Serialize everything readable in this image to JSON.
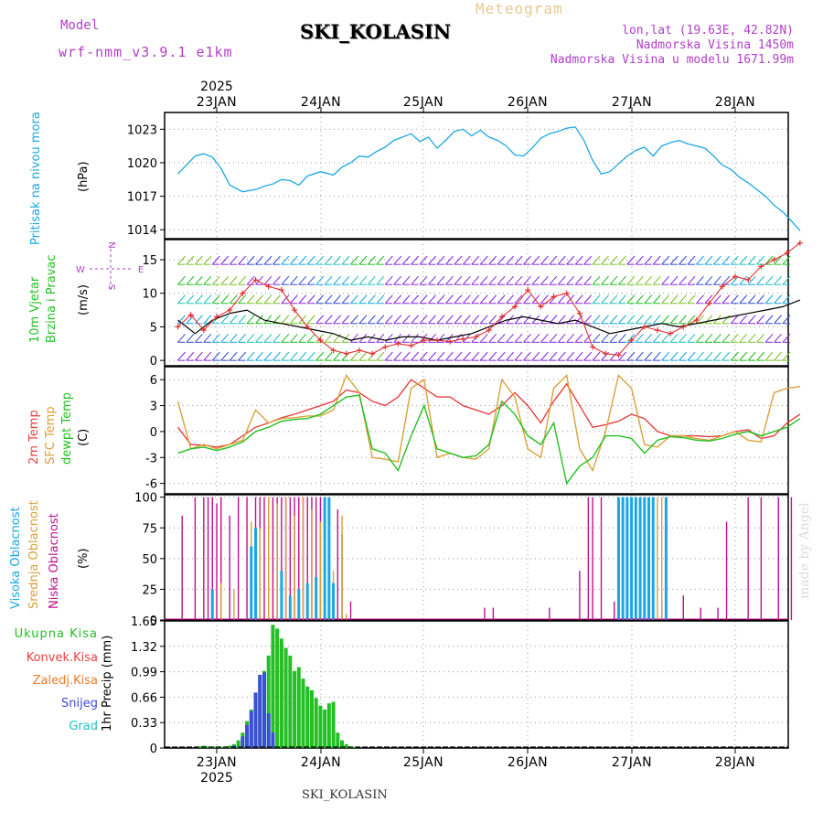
{
  "header": {
    "model_label": "Model",
    "model_name": "wrf-nmm_v3.9.1 e1km",
    "title": "SKI_KOLASIN",
    "subtitle": "Meteogram",
    "lonlat": "lon,lat (19.63E, 42.82N)",
    "altitude": "Nadmorska Visina 1450m",
    "model_altitude": "Nadmorska Visina u modelu 1671.99m",
    "footer_title": "SKI_KOLASIN",
    "credit": "made by Angel",
    "year": "2025"
  },
  "colors": {
    "pressure": "#1aa7e6",
    "wind_speed": "#e23030",
    "wind_black": "#000000",
    "t2m": "#e84040",
    "tsfc": "#d9a23a",
    "dewpt": "#22c022",
    "cloud_high": "#1aa7e6",
    "cloud_mid": "#d9a23a",
    "cloud_low": "#c0108c",
    "precip_total": "#22c022",
    "precip_conv": "#e84040",
    "precip_frz": "#f07a2a",
    "precip_snow": "#3b4fd8",
    "precip_hail": "#22c0c0",
    "label_purple": "#b040c8"
  },
  "chart_data": [
    {
      "id": "pressure",
      "type": "line",
      "ylabel_name": "Pritisak na nivou mora",
      "ylabel_unit": "(hPa)",
      "ylim": [
        1013.2,
        1024.5
      ],
      "yticks": [
        1014,
        1017,
        1020,
        1023
      ],
      "xticks": [
        "23JAN",
        "24JAN",
        "25JAN",
        "26JAN",
        "27JAN",
        "28JAN"
      ],
      "xlim": [
        0,
        144
      ],
      "grid": true,
      "series": [
        {
          "color": "pressure",
          "x": [
            0,
            2,
            4,
            6,
            8,
            10,
            12,
            15,
            18,
            20,
            22,
            24,
            26,
            28,
            30,
            33,
            36,
            38,
            40,
            42,
            44,
            46,
            48,
            50,
            52,
            54,
            56,
            58,
            60,
            62,
            64,
            66,
            68,
            70,
            72,
            74,
            76,
            78,
            80,
            82,
            84,
            86,
            88,
            90,
            92,
            94,
            96,
            98,
            100,
            102,
            104,
            106,
            108,
            110,
            112,
            114,
            116,
            118,
            120,
            122,
            124,
            126,
            128,
            130,
            132,
            134,
            136,
            138,
            140,
            142,
            144
          ],
          "y": [
            1019.0,
            1019.8,
            1020.6,
            1020.8,
            1020.5,
            1019.5,
            1018.0,
            1017.4,
            1017.6,
            1017.9,
            1018.1,
            1018.5,
            1018.4,
            1018.0,
            1018.8,
            1019.2,
            1018.9,
            1019.6,
            1020.0,
            1020.6,
            1020.5,
            1021.0,
            1021.4,
            1022.0,
            1022.3,
            1022.6,
            1021.9,
            1022.3,
            1021.3,
            1022.0,
            1022.8,
            1023.0,
            1022.4,
            1022.9,
            1022.3,
            1022.0,
            1021.5,
            1020.7,
            1020.6,
            1021.3,
            1022.2,
            1022.6,
            1022.8,
            1023.1,
            1023.2,
            1022.0,
            1020.2,
            1019.0,
            1019.2,
            1019.9,
            1020.6,
            1021.1,
            1021.4,
            1020.6,
            1021.5,
            1021.8,
            1022.0,
            1021.7,
            1021.5,
            1021.3,
            1020.6,
            1019.8,
            1019.4,
            1018.7,
            1018.2,
            1017.6,
            1017.0,
            1016.2,
            1015.6,
            1014.8,
            1013.9
          ]
        }
      ]
    },
    {
      "id": "wind",
      "type": "line",
      "ylabel_name": "10m Vjetar Brzina i Pravac",
      "ylabel_unit": "(m/s)",
      "compass": {
        "n": "N",
        "s": "S",
        "w": "W",
        "e": "E"
      },
      "ylim": [
        -0.8,
        18
      ],
      "yticks": [
        0,
        5,
        10,
        15
      ],
      "xlim": [
        0,
        144
      ],
      "grid": true,
      "series": [
        {
          "color": "wind_speed",
          "marker": "+",
          "x": [
            0,
            3,
            6,
            9,
            12,
            15,
            18,
            21,
            24,
            27,
            30,
            33,
            36,
            39,
            42,
            45,
            48,
            51,
            54,
            57,
            60,
            63,
            66,
            69,
            72,
            75,
            78,
            81,
            84,
            87,
            90,
            93,
            96,
            99,
            102,
            105,
            108,
            111,
            114,
            117,
            120,
            123,
            126,
            129,
            132,
            135,
            138,
            141,
            144
          ],
          "y": [
            5.0,
            6.8,
            4.5,
            6.5,
            7.5,
            10.0,
            12.0,
            11.0,
            10.5,
            7.5,
            5.0,
            3.0,
            1.5,
            1.0,
            1.5,
            1.0,
            2.0,
            2.5,
            2.2,
            3.0,
            3.0,
            2.8,
            3.2,
            3.5,
            4.5,
            6.5,
            8.0,
            10.5,
            8.0,
            9.5,
            10.0,
            7.0,
            2.0,
            1.0,
            0.8,
            3.0,
            5.0,
            4.5,
            4.0,
            5.0,
            6.0,
            8.5,
            11.0,
            12.5,
            12.0,
            14.0,
            15.0,
            16.0,
            17.5
          ]
        },
        {
          "color": "wind_black",
          "x": [
            0,
            4,
            8,
            12,
            16,
            20,
            24,
            28,
            32,
            36,
            40,
            44,
            48,
            52,
            56,
            60,
            64,
            68,
            72,
            76,
            80,
            84,
            88,
            92,
            96,
            100,
            104,
            108,
            112,
            116,
            120,
            124,
            128,
            132,
            136,
            140,
            144
          ],
          "y": [
            6.0,
            4.0,
            6.0,
            7.0,
            7.5,
            6.0,
            5.5,
            5.0,
            4.5,
            4.0,
            3.0,
            3.5,
            3.0,
            3.5,
            3.5,
            3.0,
            3.5,
            4.0,
            5.0,
            6.0,
            6.5,
            6.0,
            5.5,
            6.0,
            5.0,
            4.0,
            4.5,
            5.0,
            5.5,
            5.0,
            5.5,
            6.0,
            6.5,
            7.0,
            7.5,
            8.0,
            9.0
          ]
        }
      ],
      "barb_rows": [
        0,
        2.7,
        5.5,
        8.5,
        11.3,
        14.3
      ]
    },
    {
      "id": "temperature",
      "type": "line",
      "ylabel_name": [
        "2m Temp",
        "SFC Temp",
        "dewpt Temp"
      ],
      "ylabel_unit": "(C)",
      "ylim": [
        -7.2,
        7.5
      ],
      "yticks": [
        -6,
        -3,
        0,
        3,
        6
      ],
      "xlim": [
        0,
        144
      ],
      "grid": true,
      "series": [
        {
          "name": "2m Temp",
          "color": "t2m",
          "x": [
            0,
            3,
            6,
            9,
            12,
            15,
            18,
            21,
            24,
            27,
            30,
            33,
            36,
            39,
            42,
            45,
            48,
            51,
            54,
            57,
            60,
            63,
            66,
            69,
            72,
            75,
            78,
            81,
            84,
            87,
            90,
            93,
            96,
            99,
            102,
            105,
            108,
            111,
            114,
            117,
            120,
            123,
            126,
            129,
            132,
            135,
            138,
            141,
            144
          ],
          "y": [
            0.5,
            -1.5,
            -1.6,
            -1.8,
            -1.5,
            -0.5,
            0.5,
            1.0,
            1.6,
            2.0,
            2.5,
            3.0,
            3.5,
            4.8,
            4.5,
            3.5,
            3.0,
            4.0,
            6.0,
            5.0,
            4.0,
            4.0,
            3.0,
            2.5,
            2.0,
            3.0,
            4.5,
            3.0,
            1.0,
            3.5,
            5.5,
            3.0,
            0.5,
            0.8,
            1.2,
            2.0,
            1.5,
            0.0,
            -0.5,
            -0.5,
            -0.5,
            -0.6,
            -0.5,
            0.0,
            0.2,
            -0.8,
            -0.5,
            1.0,
            2.0
          ]
        },
        {
          "name": "SFC Temp",
          "color": "tsfc",
          "x": [
            0,
            3,
            6,
            9,
            12,
            15,
            18,
            21,
            24,
            27,
            30,
            33,
            36,
            39,
            42,
            45,
            48,
            51,
            54,
            57,
            60,
            63,
            66,
            69,
            72,
            75,
            78,
            81,
            84,
            87,
            90,
            93,
            96,
            99,
            102,
            105,
            108,
            111,
            114,
            117,
            120,
            123,
            126,
            129,
            132,
            135,
            138,
            141,
            144
          ],
          "y": [
            3.5,
            -2.0,
            -1.5,
            -2.0,
            -1.5,
            -1.0,
            2.5,
            1.0,
            1.5,
            1.6,
            1.8,
            1.8,
            2.5,
            6.5,
            4.5,
            -3.0,
            -3.2,
            -3.5,
            5.0,
            6.0,
            -3.0,
            -2.5,
            -3.0,
            -3.2,
            -2.0,
            6.0,
            4.0,
            -2.0,
            -3.0,
            5.0,
            6.5,
            -2.0,
            -4.5,
            0.0,
            6.5,
            5.0,
            -1.5,
            -1.8,
            -0.5,
            -0.5,
            -0.8,
            -1.0,
            -0.5,
            0.0,
            -1.0,
            -1.2,
            4.5,
            5.0,
            5.2
          ]
        },
        {
          "name": "dewpt Temp",
          "color": "dewpt",
          "x": [
            0,
            3,
            6,
            9,
            12,
            15,
            18,
            21,
            24,
            27,
            30,
            33,
            36,
            39,
            42,
            45,
            48,
            51,
            54,
            57,
            60,
            63,
            66,
            69,
            72,
            75,
            78,
            81,
            84,
            87,
            90,
            93,
            96,
            99,
            102,
            105,
            108,
            111,
            114,
            117,
            120,
            123,
            126,
            129,
            132,
            135,
            138,
            141,
            144
          ],
          "y": [
            -2.5,
            -2.0,
            -1.8,
            -2.2,
            -1.8,
            -1.2,
            0.0,
            0.5,
            1.2,
            1.4,
            1.5,
            2.0,
            3.0,
            4.0,
            4.2,
            -2.0,
            -2.5,
            -4.5,
            -0.5,
            3.0,
            -2.0,
            -2.5,
            -3.0,
            -2.8,
            -1.5,
            3.5,
            2.0,
            -0.5,
            -1.5,
            1.0,
            -6.0,
            -4.0,
            -3.0,
            -0.5,
            -0.5,
            -0.8,
            -2.5,
            -1.0,
            -0.6,
            -0.7,
            -1.0,
            -1.1,
            -0.8,
            -0.3,
            0.0,
            -0.5,
            0.0,
            0.5,
            1.5
          ]
        }
      ]
    },
    {
      "id": "clouds",
      "type": "bar",
      "ylabel_name": [
        "Visoka Oblacnost",
        "Srednja Oblacnost",
        "Niska Oblacnost"
      ],
      "ylabel_unit": "(%)",
      "ylim": [
        0,
        102
      ],
      "yticks": [
        0,
        25,
        50,
        75,
        100
      ],
      "xlim": [
        0,
        144
      ],
      "grid": true,
      "series": [
        {
          "name": "Niska Oblacnost",
          "color": "cloud_low",
          "x": [
            1,
            4,
            6,
            7,
            8,
            9,
            10,
            12,
            14,
            16,
            18,
            19,
            20,
            21,
            22,
            23,
            24,
            25,
            26,
            27,
            28,
            29,
            30,
            31,
            32,
            33,
            35,
            37,
            38,
            40,
            71,
            73,
            86,
            93,
            95,
            96,
            98,
            101,
            104,
            106,
            112,
            117,
            121,
            125,
            127,
            132,
            135,
            139,
            142
          ],
          "y": [
            85,
            100,
            100,
            100,
            100,
            95,
            100,
            85,
            100,
            100,
            100,
            100,
            100,
            100,
            100,
            100,
            100,
            100,
            100,
            100,
            100,
            100,
            100,
            100,
            100,
            100,
            95,
            90,
            70,
            15,
            10,
            10,
            10,
            40,
            100,
            100,
            100,
            15,
            10,
            10,
            15,
            20,
            10,
            10,
            80,
            100,
            100,
            100,
            100
          ]
        },
        {
          "name": "Srednja Oblacnost",
          "color": "cloud_mid",
          "x": [
            10,
            13,
            17,
            19,
            21,
            23,
            25,
            27,
            29,
            31,
            33,
            36,
            38,
            39,
            111,
            112
          ],
          "y": [
            30,
            25,
            80,
            75,
            100,
            95,
            100,
            85,
            100,
            90,
            80,
            40,
            85,
            5,
            100,
            100
          ]
        },
        {
          "name": "Visoka Oblacnost",
          "color": "cloud_high",
          "x": [
            8,
            17,
            18,
            24,
            26,
            28,
            30,
            32,
            34,
            35,
            36,
            102,
            103,
            104,
            105,
            106,
            107,
            108,
            109,
            110,
            113
          ],
          "y": [
            25,
            60,
            75,
            40,
            20,
            25,
            30,
            35,
            100,
            100,
            30,
            100,
            100,
            100,
            100,
            100,
            100,
            100,
            100,
            100,
            100
          ]
        }
      ]
    },
    {
      "id": "precip",
      "type": "bar",
      "ylabel_name": [
        "Ukupna Kisa",
        "Konvek.Kisa",
        "Zaledj.Kisa",
        "Snijeg",
        "Grad"
      ],
      "ylabel_unit": "1hr Precip (mm)",
      "ylim": [
        0,
        1.65
      ],
      "yticks": [
        0,
        0.33,
        0.66,
        0.99,
        1.32,
        1.65
      ],
      "xticks": [
        "23JAN",
        "24JAN",
        "25JAN",
        "26JAN",
        "27JAN",
        "28JAN"
      ],
      "xlim": [
        0,
        144
      ],
      "grid": true,
      "series": [
        {
          "name": "Ukupna Kisa",
          "color": "precip_total",
          "x": [
            5,
            6,
            7,
            8,
            9,
            10,
            11,
            12,
            13,
            14,
            15,
            16,
            17,
            18,
            19,
            20,
            21,
            22,
            23,
            24,
            25,
            26,
            27,
            28,
            29,
            30,
            31,
            32,
            33,
            34,
            35,
            36,
            37,
            38,
            39,
            40,
            41
          ],
          "y": [
            0.02,
            0.03,
            0.02,
            0.01,
            0.02,
            0.01,
            0.02,
            0.03,
            0.05,
            0.1,
            0.2,
            0.35,
            0.5,
            0.7,
            0.95,
            1.0,
            1.2,
            1.6,
            1.55,
            1.42,
            1.3,
            1.2,
            1.0,
            1.05,
            0.9,
            0.8,
            0.75,
            0.65,
            0.55,
            0.5,
            0.58,
            0.6,
            0.2,
            0.1,
            0.05,
            0.02,
            0.01
          ]
        },
        {
          "name": "Snijeg",
          "color": "precip_snow",
          "x": [
            13,
            15,
            16,
            17,
            18,
            19,
            20,
            21,
            22
          ],
          "y": [
            0.03,
            0.15,
            0.3,
            0.48,
            0.72,
            0.95,
            0.98,
            0.45,
            0.2
          ]
        }
      ]
    }
  ]
}
